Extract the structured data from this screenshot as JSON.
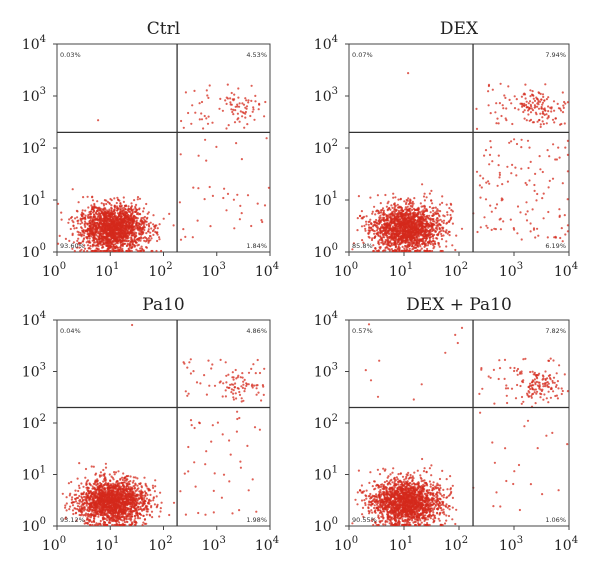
{
  "chart_data": [
    {
      "type": "scatter",
      "title": "Ctrl",
      "x_scale": "log",
      "y_scale": "log",
      "xlim": [
        1,
        10000
      ],
      "ylim": [
        1,
        10000
      ],
      "x_ticks": [
        "10",
        "10",
        "10",
        "10",
        "10"
      ],
      "x_tick_exponents": [
        "0",
        "1",
        "2",
        "3",
        "4"
      ],
      "y_ticks": [
        "10",
        "10",
        "10",
        "10",
        "10"
      ],
      "y_tick_exponents": [
        "0",
        "1",
        "2",
        "3",
        "4"
      ],
      "gate": {
        "x": 180,
        "y": 200
      },
      "quadrants": {
        "upper_left": "0.03%",
        "upper_right": "4.53%",
        "lower_left": "93.60%",
        "lower_right": "1.84%"
      },
      "grid": false,
      "point_color": "#d42a1c"
    },
    {
      "type": "scatter",
      "title": "DEX",
      "x_scale": "log",
      "y_scale": "log",
      "xlim": [
        1,
        10000
      ],
      "ylim": [
        1,
        10000
      ],
      "x_ticks": [
        "10",
        "10",
        "10",
        "10",
        "10"
      ],
      "x_tick_exponents": [
        "0",
        "1",
        "2",
        "3",
        "4"
      ],
      "y_ticks": [
        "10",
        "10",
        "10",
        "10",
        "10"
      ],
      "y_tick_exponents": [
        "0",
        "1",
        "2",
        "3",
        "4"
      ],
      "gate": {
        "x": 180,
        "y": 200
      },
      "quadrants": {
        "upper_left": "0.07%",
        "upper_right": "7.94%",
        "lower_left": "85.8%",
        "lower_right": "6.19%"
      },
      "grid": false,
      "point_color": "#d42a1c"
    },
    {
      "type": "scatter",
      "title": "Pa10",
      "x_scale": "log",
      "y_scale": "log",
      "xlim": [
        1,
        10000
      ],
      "ylim": [
        1,
        10000
      ],
      "x_ticks": [
        "10",
        "10",
        "10",
        "10",
        "10"
      ],
      "x_tick_exponents": [
        "0",
        "1",
        "2",
        "3",
        "4"
      ],
      "y_ticks": [
        "10",
        "10",
        "10",
        "10",
        "10"
      ],
      "y_tick_exponents": [
        "0",
        "1",
        "2",
        "3",
        "4"
      ],
      "gate": {
        "x": 180,
        "y": 200
      },
      "quadrants": {
        "upper_left": "0.04%",
        "upper_right": "4.86%",
        "lower_left": "93.12%",
        "lower_right": "1.98%"
      },
      "grid": false,
      "point_color": "#d42a1c"
    },
    {
      "type": "scatter",
      "title": "DEX + Pa10",
      "x_scale": "log",
      "y_scale": "log",
      "xlim": [
        1,
        10000
      ],
      "ylim": [
        1,
        10000
      ],
      "x_ticks": [
        "10",
        "10",
        "10",
        "10",
        "10"
      ],
      "x_tick_exponents": [
        "0",
        "1",
        "2",
        "3",
        "4"
      ],
      "y_ticks": [
        "10",
        "10",
        "10",
        "10",
        "10"
      ],
      "y_tick_exponents": [
        "0",
        "1",
        "2",
        "3",
        "4"
      ],
      "gate": {
        "x": 180,
        "y": 200
      },
      "quadrants": {
        "upper_left": "0.57%",
        "upper_right": "7.82%",
        "lower_left": "90.55%",
        "lower_right": "1.06%"
      },
      "grid": false,
      "point_color": "#d42a1c"
    }
  ]
}
